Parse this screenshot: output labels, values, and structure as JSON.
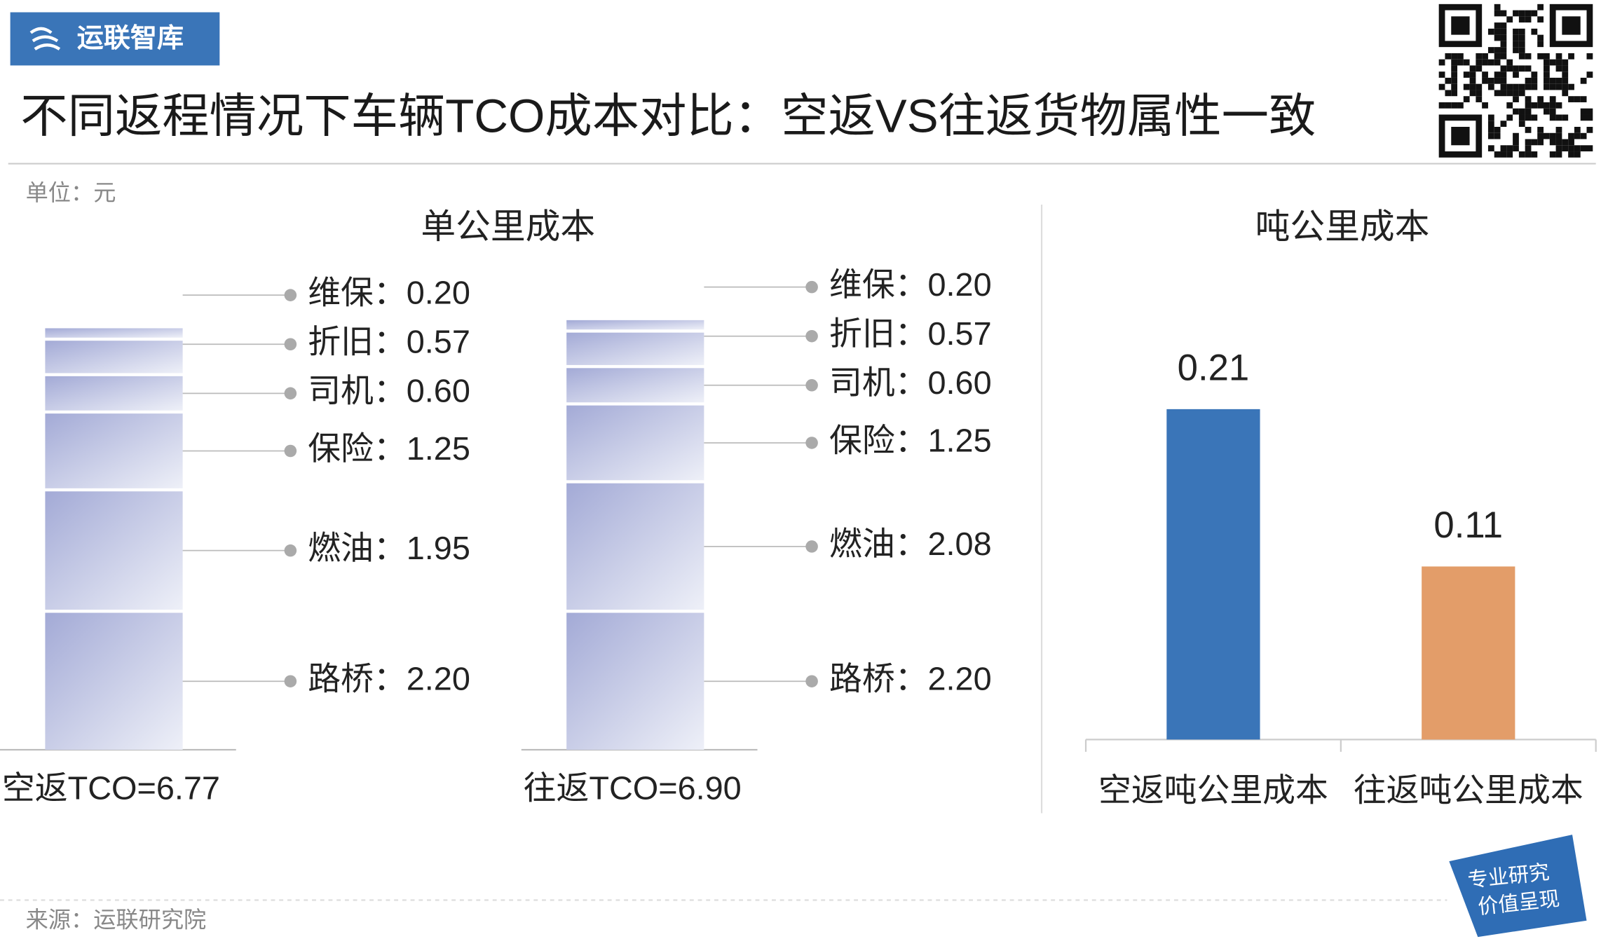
{
  "header": {
    "logo": "运联智库",
    "title": "不同返程情况下车辆TCO成本对比：空返VS往返货物属性一致"
  },
  "unit": "单位：元",
  "chart_data": [
    {
      "type": "stacked-bar",
      "title": "单公里成本",
      "color": "#a3aad6",
      "categories": [
        "空返TCO=6.77",
        "往返TCO=6.90"
      ],
      "series": [
        {
          "values": [
            2.2,
            2.2
          ],
          "value_labels": [
            "路桥：2.20",
            "路桥：2.20"
          ]
        },
        {
          "values": [
            1.95,
            2.08
          ],
          "value_labels": [
            "燃油：1.95",
            "燃油：2.08"
          ]
        },
        {
          "values": [
            1.25,
            1.25
          ],
          "value_labels": [
            "保险：1.25",
            "保险：1.25"
          ]
        },
        {
          "values": [
            0.6,
            0.6
          ],
          "value_labels": [
            "司机：0.60",
            "司机：0.60"
          ]
        },
        {
          "values": [
            0.57,
            0.57
          ],
          "value_labels": [
            "折旧：0.57",
            "折旧：0.57"
          ]
        },
        {
          "values": [
            0.2,
            0.2
          ],
          "value_labels": [
            "维保：0.20",
            "维保：0.20"
          ]
        }
      ]
    },
    {
      "type": "bar",
      "title": "吨公里成本",
      "categories": [
        "空返吨公里成本",
        "往返吨公里成本"
      ],
      "values": [
        0.21,
        0.11
      ],
      "colors": [
        "#3a75b8",
        "#e39d69"
      ]
    }
  ],
  "footer": {
    "source": "来源：运联研究院",
    "badge": [
      "专业研究",
      "价值呈现"
    ]
  }
}
